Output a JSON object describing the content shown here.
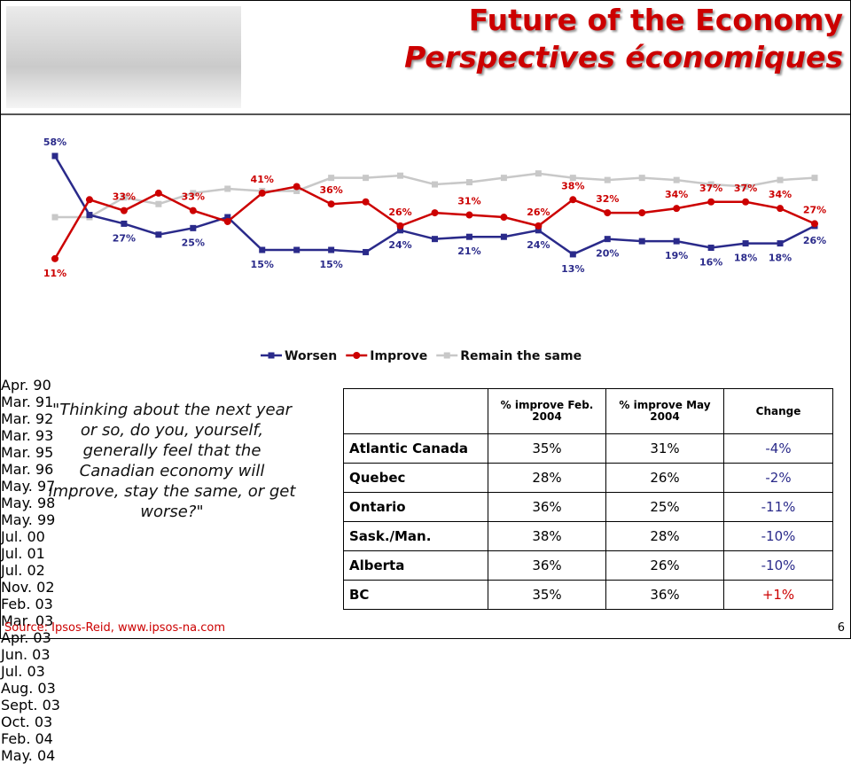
{
  "header": {
    "title": "Future of the Economy",
    "subtitle": "Perspectives économiques"
  },
  "chart_data": {
    "type": "line",
    "categories": [
      "Apr. 90",
      "Mar. 91",
      "Mar. 92",
      "Mar. 93",
      "Mar. 95",
      "Mar. 96",
      "May. 97",
      "May. 98",
      "May. 99",
      "Jul. 00",
      "Jul. 01",
      "Jul. 02",
      "Nov. 02",
      "Feb. 03",
      "Mar. 03",
      "Apr. 03",
      "Jun. 03",
      "Jul. 03",
      "Aug. 03",
      "Sept. 03",
      "Oct. 03",
      "Feb. 04",
      "May. 04"
    ],
    "series": [
      {
        "name": "Worsen",
        "color": "#2a2a8a",
        "marker": "square",
        "values": [
          58,
          31,
          27,
          22,
          25,
          30,
          15,
          15,
          15,
          14,
          24,
          20,
          21,
          21,
          24,
          13,
          20,
          19,
          19,
          16,
          18,
          18,
          26
        ],
        "value_labels": [
          "58%",
          null,
          "27%",
          null,
          "25%",
          null,
          "15%",
          null,
          "15%",
          null,
          "24%",
          null,
          "21%",
          null,
          "24%",
          "13%",
          "20%",
          null,
          "19%",
          "16%",
          "18%",
          "18%",
          "26%"
        ]
      },
      {
        "name": "Improve",
        "color": "#cc0000",
        "marker": "circle",
        "values": [
          11,
          38,
          33,
          41,
          33,
          28,
          41,
          44,
          36,
          37,
          26,
          32,
          31,
          30,
          26,
          38,
          32,
          32,
          34,
          37,
          37,
          34,
          27
        ],
        "value_labels": [
          "11%",
          null,
          "33%",
          null,
          "33%",
          null,
          "41%",
          null,
          "36%",
          null,
          "26%",
          null,
          "31%",
          null,
          "26%",
          "38%",
          "32%",
          null,
          "34%",
          "37%",
          "37%",
          "34%",
          "27%"
        ]
      },
      {
        "name": "Remain the same",
        "color": "#c8c8c8",
        "marker": "square",
        "values": [
          30,
          30,
          39,
          36,
          41,
          43,
          42,
          42,
          48,
          48,
          49,
          45,
          46,
          48,
          50,
          48,
          47,
          48,
          47,
          45,
          44,
          47,
          48
        ]
      }
    ],
    "legend": "bottom"
  },
  "quote": "\"Thinking about the next year or so, do you, yourself, generally feel that the Canadian economy will improve, stay the same, or get worse?\"",
  "table": {
    "header": [
      "",
      "% improve Feb. 2004",
      "% improve May 2004",
      "Change"
    ],
    "rows": [
      [
        "Atlantic Canada",
        "35%",
        "31%",
        "-4%"
      ],
      [
        "Quebec",
        "28%",
        "26%",
        "-2%"
      ],
      [
        "Ontario",
        "36%",
        "25%",
        "-11%"
      ],
      [
        "Sask./Man.",
        "38%",
        "28%",
        "-10%"
      ],
      [
        "Alberta",
        "36%",
        "26%",
        "-10%"
      ],
      [
        "BC",
        "35%",
        "36%",
        "+1%"
      ]
    ]
  },
  "source": "Source: Ipsos-Reid, www.ipsos-na.com",
  "page_number": "6"
}
